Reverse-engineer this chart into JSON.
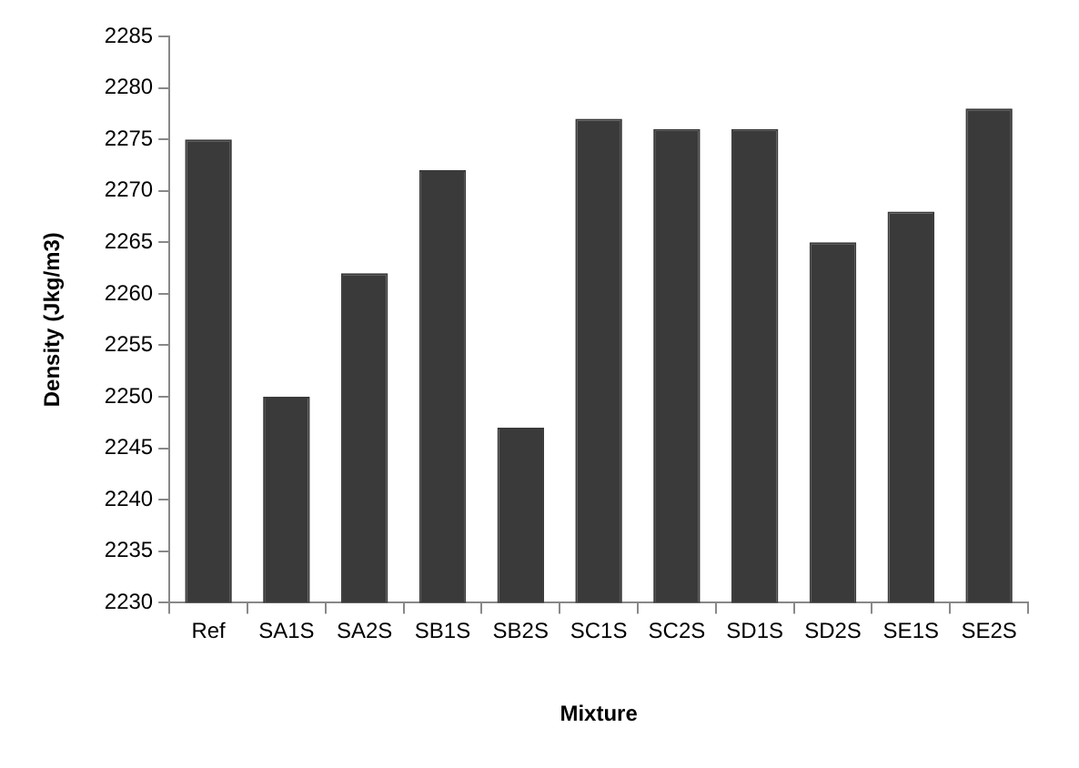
{
  "chart_data": {
    "type": "bar",
    "xlabel": "Mixture",
    "ylabel": "Density (Jkg/m3)",
    "categories": [
      "Ref",
      "SA1S",
      "SA2S",
      "SB1S",
      "SB2S",
      "SC1S",
      "SC2S",
      "SD1S",
      "SD2S",
      "SE1S",
      "SE2S"
    ],
    "values": [
      2275,
      2250,
      2262,
      2272,
      2247,
      2277,
      2276,
      2276,
      2265,
      2268,
      2278
    ],
    "color": "#3a3a3a",
    "ylim": [
      2230,
      2285
    ],
    "yticks": [
      2230,
      2235,
      2240,
      2245,
      2250,
      2255,
      2260,
      2265,
      2270,
      2275,
      2280,
      2285
    ],
    "grid": false,
    "legend": false
  }
}
